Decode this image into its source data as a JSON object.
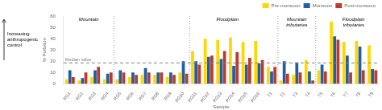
{
  "chart_data": {
    "type": "bar",
    "categories": [
      "RG1",
      "RG2",
      "RG3",
      "RG4",
      "RG5",
      "RG6",
      "RG7",
      "RG8",
      "RG9",
      "RG10",
      "RG11",
      "RG12",
      "RG13",
      "RG14",
      "RG15",
      "RG16",
      "T1",
      "T2",
      "T3",
      "T4",
      "T5",
      "T6",
      "T7",
      "T8",
      "T9"
    ],
    "series": [
      {
        "name": "Pre-monsoon",
        "color": "#FFD700",
        "values": [
          4,
          3,
          6,
          4,
          4,
          6,
          8,
          8,
          6,
          10,
          29,
          40,
          39,
          41,
          37,
          38,
          15,
          3,
          8,
          21,
          12,
          55,
          37,
          38,
          34
        ]
      },
      {
        "name": "Monsoon",
        "color": "#1F5FA6",
        "values": [
          12,
          5,
          12,
          9,
          12,
          10,
          14,
          10,
          10,
          20,
          20,
          24,
          22,
          16,
          17,
          18,
          11,
          20,
          19,
          11,
          17,
          42,
          25,
          33,
          13
        ]
      },
      {
        "name": "Post-monsoon",
        "color": "#C0392B",
        "values": [
          6,
          10,
          15,
          10,
          10,
          8,
          10,
          10,
          8,
          9,
          17,
          25,
          29,
          28,
          23,
          21,
          15,
          9,
          10,
          3,
          11,
          39,
          10,
          12,
          12
        ]
      }
    ],
    "xlabel": "Sample",
    "ylabel": "% Pollution",
    "ylim": [
      0,
      60
    ],
    "yticks": [
      0,
      10,
      20,
      30,
      40,
      50,
      60
    ],
    "grid": false,
    "legend": "top",
    "reference_line": {
      "value": 18.5,
      "label": "Median value"
    },
    "dividers_after": [
      "RG4",
      "RG10",
      "T1",
      "T4"
    ],
    "section_labels": [
      {
        "text": "Mountain",
        "over": [
          "RG1",
          "RG4"
        ]
      },
      {
        "text": "Floodplain",
        "over": [
          "RG11",
          "RG16"
        ]
      },
      {
        "text": "Mountain\ntributaries",
        "over": [
          "T2",
          "T4"
        ]
      },
      {
        "text": "Floodplain\ntributaries",
        "over": [
          "T7",
          "T8"
        ]
      }
    ],
    "arrow_text": "Increasing\nanthropogenic\ncontrol"
  }
}
